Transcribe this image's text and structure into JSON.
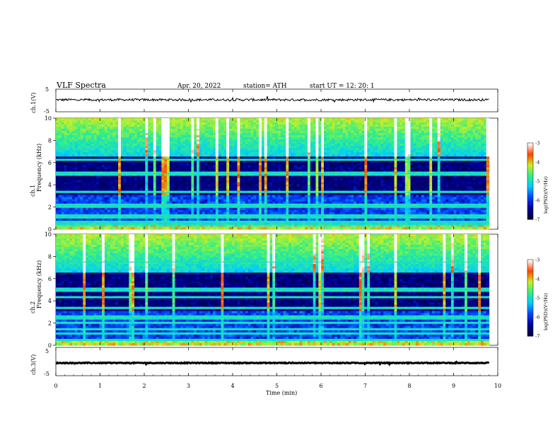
{
  "header": {
    "title": "VLF  Spectra",
    "date": "Apr. 20, 2022",
    "station": "station= ATH",
    "start": "start  UT  =   12: 20: 1"
  },
  "chart_data": [
    {
      "type": "line",
      "id": "ch1-waveform",
      "ylabel": "ch.1(V)",
      "ylim": [
        -5,
        5
      ],
      "yticks": [
        "5",
        "-5"
      ],
      "xlim": [
        0,
        10
      ],
      "x_end": 9.8,
      "baseline": 0.3,
      "noise_amplitude": 0.5,
      "color": "#000000"
    },
    {
      "type": "heatmap",
      "id": "ch1-spectrogram",
      "ylabel": "ch.1 Frequency (kHz)",
      "ylim": [
        0,
        10
      ],
      "yticks": [
        "0",
        "2",
        "4",
        "6",
        "8",
        "10"
      ],
      "xlim": [
        0,
        10
      ],
      "x_end": 9.8,
      "colorbar": {
        "label": "log(PSD)(V²/Hz)",
        "ticks": [
          "-3",
          "-4",
          "-5",
          "-6",
          "-7"
        ],
        "range": [
          -7,
          -3
        ]
      },
      "bands_khz": [
        0.3,
        0.6,
        1.0,
        1.3,
        2.0,
        2.2,
        3.3,
        5.0,
        6.3
      ]
    },
    {
      "type": "heatmap",
      "id": "ch2-spectrogram",
      "ylabel": "ch.2 Frequency (kHz)",
      "ylim": [
        0,
        10
      ],
      "yticks": [
        "0",
        "2",
        "4",
        "6",
        "8",
        "10"
      ],
      "xlim": [
        0,
        10
      ],
      "x_end": 9.8,
      "colorbar": {
        "label": "log(PSD)(V²/Hz)",
        "ticks": [
          "-3",
          "-4",
          "-5",
          "-6",
          "-7"
        ],
        "range": [
          -7,
          -3
        ]
      },
      "bands_khz": [
        0.5,
        1.0,
        1.5,
        2.0,
        2.5,
        3.3,
        4.3,
        5.0,
        7.5
      ]
    },
    {
      "type": "line",
      "id": "ch3-waveform",
      "ylabel": "ch.3(V)",
      "ylim": [
        -5,
        5
      ],
      "yticks": [
        "5",
        "-5"
      ],
      "xlim": [
        0,
        10
      ],
      "x_end": 9.8,
      "baseline": -0.5,
      "noise_amplitude": 0.15,
      "color": "#000000"
    }
  ],
  "x_axis": {
    "label": "Time  (min)",
    "ticks": [
      "0",
      "1",
      "2",
      "3",
      "4",
      "5",
      "6",
      "7",
      "8",
      "9",
      "10"
    ],
    "range": [
      0,
      10
    ]
  },
  "colors": {
    "colormap": [
      "#000040",
      "#000099",
      "#0044ff",
      "#00ccff",
      "#33ee88",
      "#ccee22",
      "#ff4400",
      "#ffffff"
    ],
    "grid_line": "#cccccc",
    "axis": "#000000"
  }
}
